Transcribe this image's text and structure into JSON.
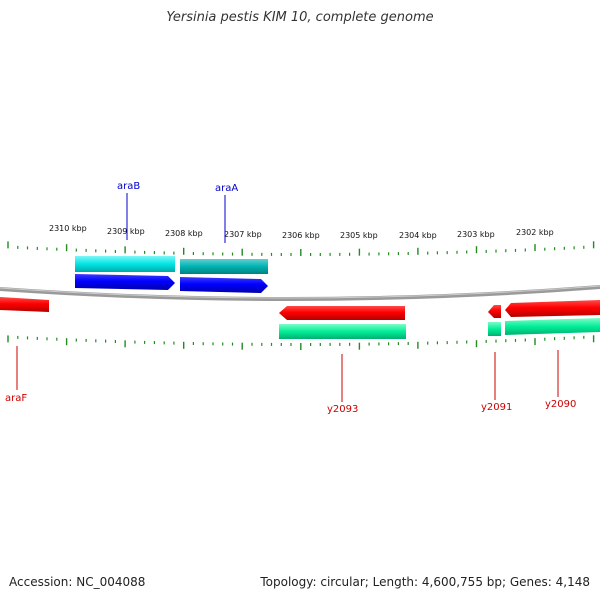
{
  "title": "Yersinia pestis KIM 10, complete genome",
  "footer": {
    "accession": "Accession: NC_004088",
    "summary": "Topology: circular; Length: 4,600,755 bp; Genes: 4,148"
  },
  "scale": {
    "labels": [
      "2310 kbp",
      "2309 kbp",
      "2308 kbp",
      "2307 kbp",
      "2306 kbp",
      "2305 kbp",
      "2304 kbp",
      "2303 kbp",
      "2302 kbp"
    ]
  },
  "genes": [
    {
      "label": "araB",
      "strand": "forward",
      "color": "#0000cc"
    },
    {
      "label": "araA",
      "strand": "forward",
      "color": "#0000cc"
    },
    {
      "label": "araF",
      "strand": "reverse",
      "color": "#cc0000"
    },
    {
      "label": "y2093",
      "strand": "reverse",
      "color": "#cc0000"
    },
    {
      "label": "y2091",
      "strand": "reverse",
      "color": "#cc0000"
    },
    {
      "label": "y2090",
      "strand": "reverse",
      "color": "#cc0000"
    }
  ],
  "colors": {
    "forward_gene": "#0000ff",
    "forward_cds": "#00e5e5",
    "reverse_gene": "#ff0000",
    "reverse_cds": "#00ee99",
    "backbone": "#888888",
    "ticks": "#228b22"
  }
}
